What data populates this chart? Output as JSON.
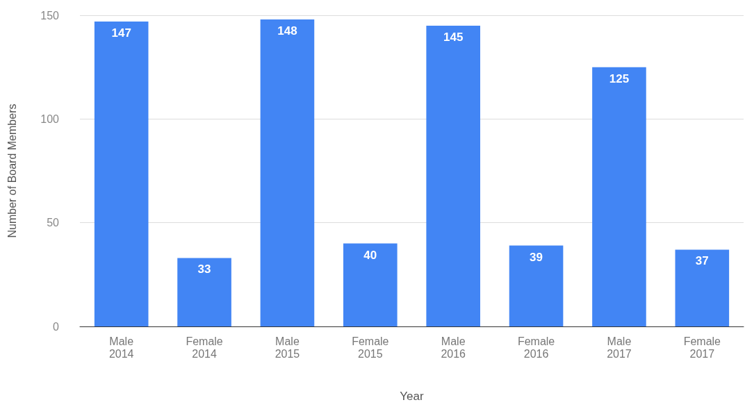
{
  "chart_data": {
    "type": "bar",
    "xlabel": "Year",
    "ylabel": "Number of Board Members",
    "categories": [
      "Male\n2014",
      "Female\n2014",
      "Male\n2015",
      "Female\n2015",
      "Male\n2016",
      "Female\n2016",
      "Male\n2017",
      "Female\n2017"
    ],
    "values": [
      147,
      33,
      148,
      40,
      145,
      39,
      125,
      37
    ],
    "color": "#4285f4",
    "ylim": [
      0,
      150
    ],
    "yticks": [
      0,
      50,
      100,
      150
    ],
    "grid": "y",
    "data_labels": true
  }
}
